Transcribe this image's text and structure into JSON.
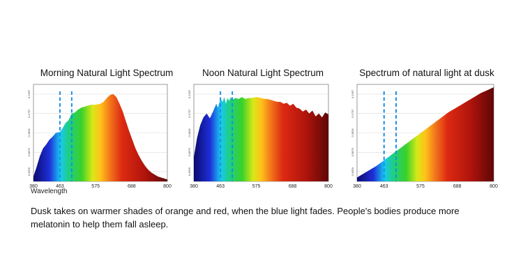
{
  "caption": "Dusk takes on warmer shades of orange and red, when the blue light fades. People's bodies produce more melatonin to help them fall asleep.",
  "chart_data": [
    {
      "type": "area",
      "title": "Morning Natural Light Spectrum",
      "xlabel": "Wavelength",
      "x_ticks": [
        "380",
        "463",
        "575",
        "688",
        "800"
      ],
      "y_ticks": [
        "0.4659",
        "0.3879",
        "0.2828",
        "0.1757",
        "0.1397"
      ],
      "xlim": [
        380,
        800
      ],
      "ylim": [
        0,
        1
      ],
      "markers": [
        463,
        500
      ],
      "x": [
        380,
        390,
        400,
        410,
        420,
        430,
        440,
        450,
        463,
        470,
        480,
        490,
        500,
        510,
        520,
        530,
        540,
        550,
        560,
        575,
        590,
        600,
        610,
        620,
        630,
        640,
        650,
        660,
        670,
        680,
        690,
        700,
        710,
        720,
        730,
        740,
        750,
        760,
        770,
        780,
        790,
        800
      ],
      "y": [
        0.05,
        0.15,
        0.26,
        0.34,
        0.38,
        0.43,
        0.46,
        0.5,
        0.51,
        0.54,
        0.6,
        0.63,
        0.7,
        0.71,
        0.74,
        0.76,
        0.77,
        0.78,
        0.79,
        0.79,
        0.8,
        0.82,
        0.86,
        0.89,
        0.9,
        0.87,
        0.8,
        0.72,
        0.62,
        0.52,
        0.43,
        0.34,
        0.27,
        0.21,
        0.16,
        0.12,
        0.09,
        0.07,
        0.05,
        0.04,
        0.03,
        0.02
      ]
    },
    {
      "type": "area",
      "title": "Noon Natural Light Spectrum",
      "x_ticks": [
        "380",
        "463",
        "575",
        "688",
        "800"
      ],
      "y_ticks": [
        "0.4659",
        "0.3879",
        "0.2828",
        "0.1757",
        "0.1397"
      ],
      "xlim": [
        380,
        800
      ],
      "ylim": [
        0,
        1
      ],
      "markers": [
        463,
        500
      ],
      "x": [
        380,
        390,
        400,
        410,
        420,
        430,
        440,
        450,
        455,
        463,
        470,
        475,
        480,
        485,
        490,
        495,
        500,
        510,
        520,
        530,
        540,
        550,
        560,
        575,
        590,
        600,
        610,
        620,
        630,
        640,
        650,
        660,
        670,
        680,
        690,
        700,
        710,
        720,
        730,
        740,
        750,
        760,
        770,
        780,
        790,
        800
      ],
      "y": [
        0.25,
        0.45,
        0.58,
        0.66,
        0.7,
        0.65,
        0.72,
        0.8,
        0.76,
        0.85,
        0.82,
        0.87,
        0.8,
        0.86,
        0.83,
        0.87,
        0.84,
        0.86,
        0.85,
        0.87,
        0.85,
        0.86,
        0.86,
        0.87,
        0.86,
        0.85,
        0.85,
        0.84,
        0.83,
        0.82,
        0.82,
        0.8,
        0.81,
        0.78,
        0.8,
        0.76,
        0.75,
        0.72,
        0.74,
        0.7,
        0.73,
        0.67,
        0.7,
        0.66,
        0.71,
        0.69
      ]
    },
    {
      "type": "area",
      "title": "Spectrum of natural light at dusk",
      "x_ticks": [
        "380",
        "463",
        "575",
        "688",
        "800"
      ],
      "y_ticks": [
        "0.4659",
        "0.3879",
        "0.2828",
        "0.1757",
        "0.1397"
      ],
      "xlim": [
        380,
        800
      ],
      "ylim": [
        0,
        1
      ],
      "markers": [
        463,
        500
      ],
      "x": [
        380,
        400,
        420,
        440,
        460,
        480,
        500,
        520,
        540,
        560,
        580,
        600,
        620,
        640,
        660,
        680,
        700,
        720,
        740,
        760,
        780,
        800
      ],
      "y": [
        0.04,
        0.08,
        0.12,
        0.16,
        0.21,
        0.26,
        0.31,
        0.36,
        0.41,
        0.46,
        0.51,
        0.56,
        0.61,
        0.66,
        0.71,
        0.75,
        0.79,
        0.83,
        0.87,
        0.91,
        0.94,
        0.97
      ]
    }
  ]
}
